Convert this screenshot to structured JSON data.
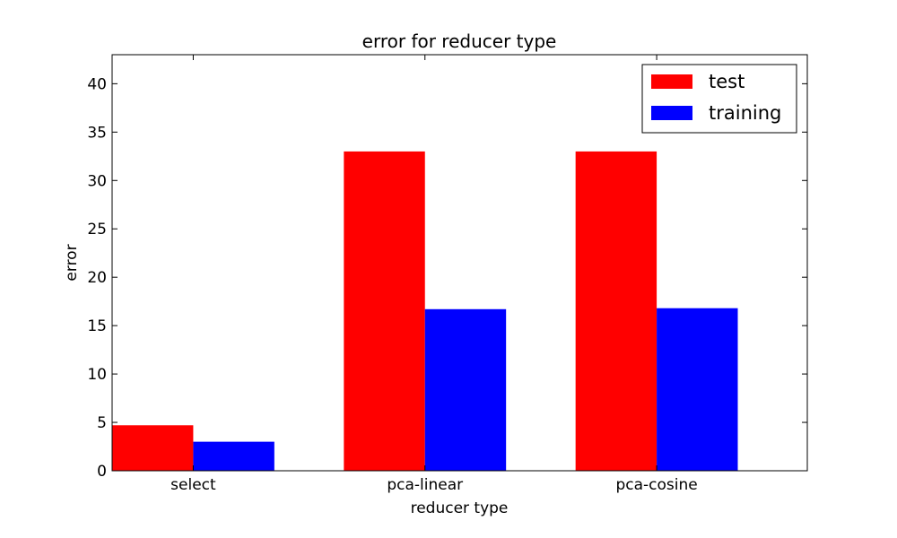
{
  "chart_data": {
    "type": "bar",
    "title": "error for reducer type",
    "xlabel": "reducer type",
    "ylabel": "error",
    "categories": [
      "select",
      "pca-linear",
      "pca-cosine"
    ],
    "series": [
      {
        "name": "test",
        "color": "#ff0000",
        "values": [
          4.7,
          33.0,
          33.0
        ]
      },
      {
        "name": "training",
        "color": "#0000ff",
        "values": [
          3.0,
          16.7,
          16.8
        ]
      }
    ],
    "ylim": [
      0,
      43
    ],
    "yticks": [
      0,
      5,
      10,
      15,
      20,
      25,
      30,
      35,
      40
    ],
    "grid": false,
    "legend_position": "top-right"
  }
}
